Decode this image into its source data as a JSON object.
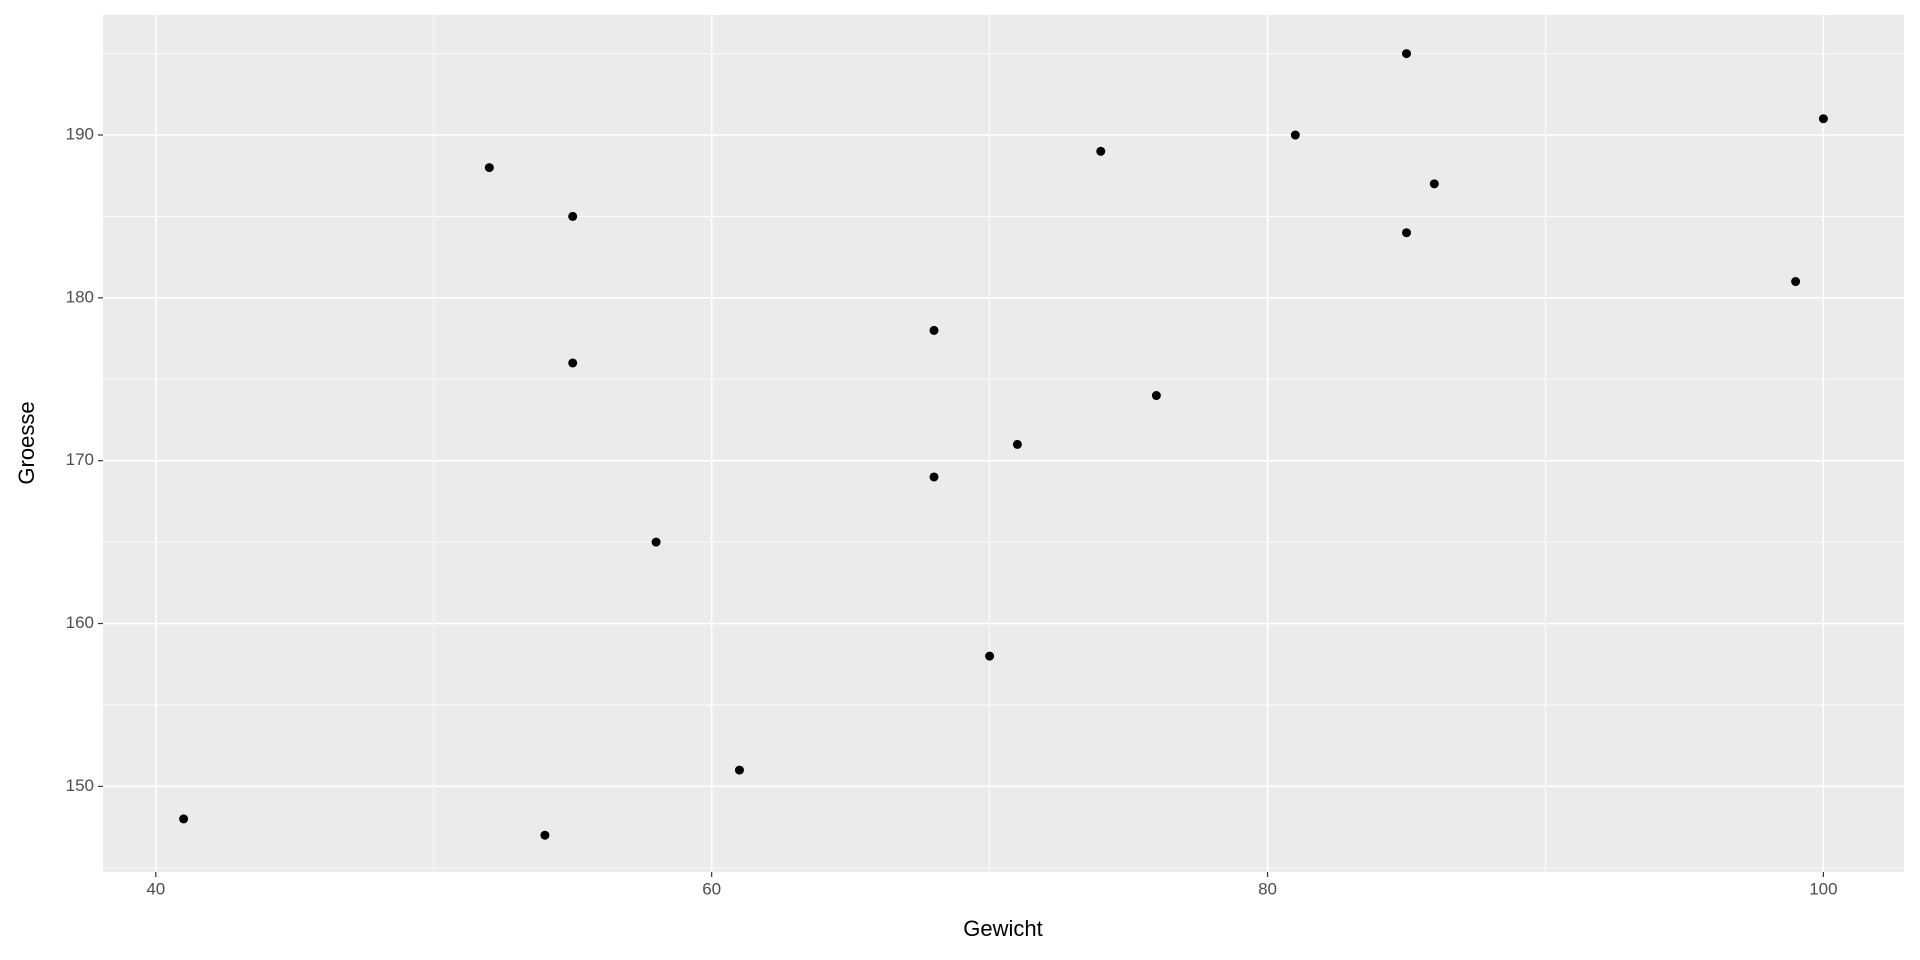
{
  "chart_data": {
    "type": "scatter",
    "x_label": "Gewicht",
    "y_label": "Groesse",
    "x": [
      41,
      52,
      54,
      55,
      55,
      58,
      61,
      68,
      68,
      70,
      71,
      74,
      76,
      81,
      85,
      85,
      86,
      99,
      100
    ],
    "values": [
      148,
      188,
      147,
      185,
      176,
      165,
      151,
      178,
      169,
      158,
      171,
      189,
      174,
      190,
      195,
      184,
      187,
      181,
      191
    ],
    "color": "#000000",
    "xlim": [
      38.1,
      102.9
    ],
    "ylim": [
      144.74,
      197.37
    ],
    "xticks": [
      40,
      60,
      80,
      100
    ],
    "yticks": [
      150,
      160,
      170,
      180,
      190
    ],
    "grid": true
  }
}
